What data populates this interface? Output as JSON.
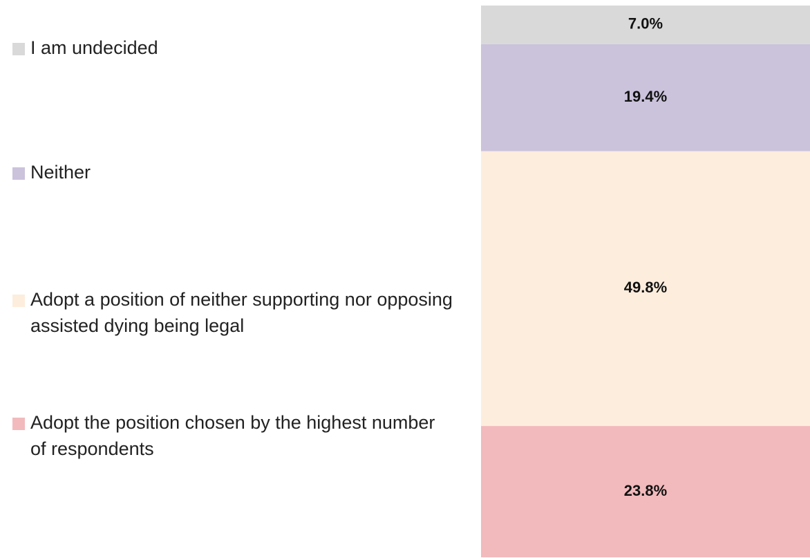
{
  "chart_data": {
    "type": "stacked_bar",
    "ylim": [
      0,
      100
    ],
    "series": [
      {
        "name": "Adopt the position chosen by the highest number of respondents",
        "color": "#f2babd",
        "values": [
          23.8
        ],
        "value_labels": [
          "23.8%"
        ]
      },
      {
        "name": "Adopt a position of neither supporting nor opposing assisted dying being legal",
        "color": "#fdeddd",
        "values": [
          49.8
        ],
        "value_labels": [
          "49.8%"
        ]
      },
      {
        "name": "Neither",
        "color": "#cbc3dc",
        "values": [
          19.4
        ],
        "value_labels": [
          "19.4%"
        ]
      },
      {
        "name": "I am undecided",
        "color": "#d9d9d9",
        "values": [
          7.0
        ],
        "value_labels": [
          "7.0%"
        ]
      }
    ]
  }
}
